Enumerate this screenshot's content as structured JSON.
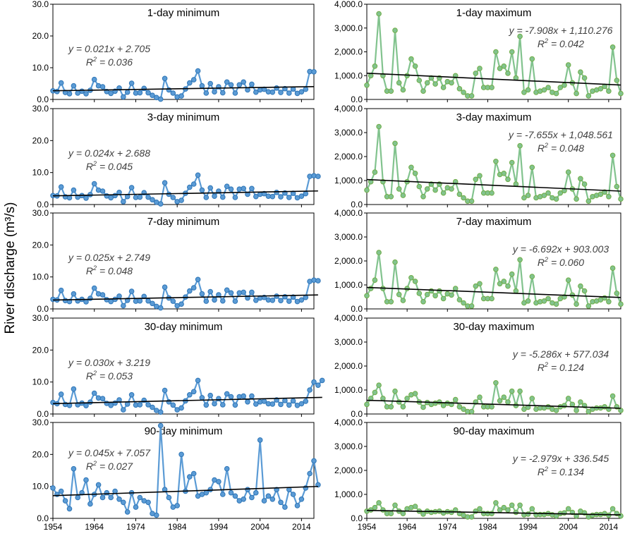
{
  "figure": {
    "ylabel": "River discharge (m³/s)",
    "xticks": [
      "1954",
      "1964",
      "1974",
      "1984",
      "1994",
      "2004",
      "2014"
    ]
  },
  "colors": {
    "min_line": "#5b9bd5",
    "min_fill": "#2e75b6",
    "max_line": "#82c38e",
    "max_fill": "#70ad47",
    "trend": "#000000"
  },
  "chart_data": [
    {
      "type": "line",
      "title": "1-day minimum",
      "series": "min",
      "ylim": [
        0,
        30
      ],
      "yticks": [
        "0.0",
        "10.0",
        "20.0",
        "30.0"
      ],
      "equation": "y = 0.021x + 2.705",
      "r2_prefix": "R",
      "r2_value": " = 0.036",
      "trend": {
        "slope": 0.021,
        "intercept": 2.705
      },
      "x_start": 1954,
      "values": [
        2.7,
        2.5,
        5.2,
        2.2,
        1.8,
        4.3,
        2.0,
        2.6,
        1.8,
        2.9,
        6.3,
        4.3,
        4.0,
        2.5,
        1.9,
        2.6,
        3.6,
        0.8,
        2.3,
        5.1,
        2.0,
        2.1,
        3.5,
        2.1,
        1.3,
        0.6,
        0.1,
        6.6,
        3.0,
        2.0,
        0.8,
        1.1,
        3.3,
        5.2,
        6.2,
        9.0,
        4.3,
        2.0,
        5.0,
        2.4,
        4.0,
        2.1,
        5.5,
        4.6,
        2.0,
        4.6,
        5.5,
        3.0,
        4.8,
        2.3,
        3.0,
        3.2,
        2.4,
        2.3,
        3.6,
        2.2,
        3.4,
        2.0,
        3.3,
        1.9,
        2.4,
        3.2,
        8.8,
        8.7
      ]
    },
    {
      "type": "line",
      "title": "1-day maximum",
      "series": "max",
      "ylim": [
        0,
        4000
      ],
      "yticks": [
        "0.0",
        "1,000.0",
        "2,000.0",
        "3,000.0",
        "4,000.0"
      ],
      "equation": "y = -7.908x + 1,110.276",
      "r2_prefix": "R",
      "r2_value": " = 0.042",
      "trend": {
        "slope": -7.908,
        "intercept": 1110.276
      },
      "x_start": 1954,
      "values": [
        600,
        1000,
        1400,
        3600,
        1000,
        350,
        350,
        2900,
        700,
        400,
        1000,
        1700,
        1400,
        800,
        350,
        700,
        900,
        650,
        900,
        500,
        750,
        700,
        1000,
        450,
        300,
        150,
        150,
        1100,
        1300,
        500,
        500,
        500,
        2000,
        1300,
        1400,
        1100,
        2000,
        900,
        2650,
        300,
        400,
        1700,
        300,
        350,
        400,
        500,
        300,
        250,
        500,
        600,
        1450,
        700,
        250,
        1150,
        900,
        150,
        350,
        400,
        450,
        550,
        350,
        2200,
        800,
        250
      ]
    },
    {
      "type": "line",
      "title": "3-day minimum",
      "series": "min",
      "ylim": [
        0,
        30
      ],
      "yticks": [
        "0.0",
        "10.0",
        "20.0",
        "30.0"
      ],
      "equation": "y = 0.024x + 2.688",
      "r2_prefix": "R",
      "r2_value": " = 0.045",
      "trend": {
        "slope": 0.024,
        "intercept": 2.688
      },
      "x_start": 1954,
      "values": [
        2.8,
        2.7,
        5.5,
        2.4,
        2.1,
        4.5,
        2.3,
        2.8,
        2.0,
        3.1,
        6.5,
        4.5,
        4.2,
        2.7,
        2.1,
        2.8,
        3.8,
        0.9,
        2.5,
        5.3,
        2.2,
        2.3,
        3.7,
        2.3,
        1.5,
        0.7,
        0.2,
        6.8,
        3.2,
        2.2,
        0.9,
        1.3,
        3.5,
        5.4,
        6.4,
        9.2,
        4.5,
        2.2,
        5.2,
        2.6,
        4.2,
        2.3,
        5.7,
        4.8,
        2.2,
        4.8,
        5.0,
        3.2,
        5.0,
        2.5,
        3.2,
        3.4,
        2.6,
        2.5,
        3.8,
        2.4,
        3.6,
        2.2,
        3.5,
        2.1,
        2.6,
        3.4,
        8.8,
        9.0,
        8.8
      ]
    },
    {
      "type": "line",
      "title": "3-day maximum",
      "series": "max",
      "ylim": [
        0,
        4000
      ],
      "yticks": [
        "0.0",
        "1,000.0",
        "2,000.0",
        "3,000.0",
        "4,000.0"
      ],
      "equation": "y = -7.655x + 1,048.561",
      "r2_prefix": "R",
      "r2_value": " = 0.048",
      "trend": {
        "slope": -7.655,
        "intercept": 1048.561
      },
      "x_start": 1954,
      "values": [
        600,
        950,
        1350,
        3250,
        950,
        330,
        330,
        2550,
        650,
        380,
        950,
        1550,
        1300,
        750,
        330,
        650,
        850,
        600,
        850,
        480,
        700,
        650,
        950,
        430,
        280,
        140,
        140,
        1050,
        1200,
        480,
        480,
        480,
        1800,
        1250,
        1300,
        1050,
        1750,
        850,
        2450,
        280,
        380,
        1550,
        280,
        330,
        380,
        480,
        280,
        230,
        480,
        580,
        1350,
        650,
        230,
        1080,
        850,
        140,
        330,
        380,
        430,
        520,
        330,
        2050,
        750,
        230
      ]
    },
    {
      "type": "line",
      "title": "7-day minimum",
      "series": "min",
      "ylim": [
        0,
        30
      ],
      "yticks": [
        "0.0",
        "10.0",
        "20.0",
        "30.0"
      ],
      "equation": "y = 0.025x + 2.749",
      "r2_prefix": "R",
      "r2_value": " = 0.048",
      "trend": {
        "slope": 0.025,
        "intercept": 2.749
      },
      "x_start": 1954,
      "values": [
        3.0,
        2.8,
        5.8,
        2.6,
        2.3,
        4.7,
        2.5,
        3.0,
        2.2,
        3.3,
        6.5,
        4.7,
        4.4,
        2.9,
        2.3,
        3.0,
        4.0,
        1.0,
        2.7,
        5.5,
        2.4,
        2.5,
        3.9,
        2.5,
        1.7,
        0.8,
        0.3,
        6.8,
        3.4,
        2.4,
        1.0,
        1.5,
        3.7,
        5.6,
        6.6,
        9.2,
        4.7,
        2.4,
        5.4,
        2.8,
        4.4,
        2.5,
        5.9,
        5.0,
        2.4,
        5.0,
        5.2,
        3.4,
        5.2,
        2.7,
        3.4,
        3.6,
        2.8,
        2.7,
        4.0,
        2.6,
        3.8,
        2.4,
        3.7,
        2.3,
        2.8,
        3.6,
        8.6,
        9.0,
        8.8
      ]
    },
    {
      "type": "line",
      "title": "7-day maximum",
      "series": "max",
      "ylim": [
        0,
        4000
      ],
      "yticks": [
        "0.0",
        "1,000.0",
        "2,000.0",
        "3,000.0",
        "4,000.0"
      ],
      "equation": "y = -6.692x + 903.003",
      "r2_prefix": "R",
      "r2_value": " = 0.060",
      "trend": {
        "slope": -6.692,
        "intercept": 903.003
      },
      "x_start": 1954,
      "values": [
        550,
        850,
        1200,
        2350,
        850,
        300,
        300,
        1950,
        600,
        350,
        850,
        1300,
        1150,
        650,
        300,
        600,
        750,
        550,
        750,
        430,
        630,
        580,
        850,
        380,
        250,
        120,
        120,
        950,
        1050,
        430,
        430,
        430,
        1650,
        1050,
        1150,
        950,
        1450,
        750,
        2050,
        250,
        330,
        1350,
        250,
        300,
        330,
        430,
        250,
        200,
        430,
        500,
        1200,
        580,
        200,
        950,
        750,
        120,
        300,
        330,
        380,
        460,
        300,
        1700,
        650,
        200
      ]
    },
    {
      "type": "line",
      "title": "30-day minimum",
      "series": "min",
      "ylim": [
        0,
        30
      ],
      "yticks": [
        "0.0",
        "10.0",
        "20.0",
        "30.0"
      ],
      "equation": "y = 0.030x + 3.219",
      "r2_prefix": "R",
      "r2_value": " = 0.053",
      "trend": {
        "slope": 0.03,
        "intercept": 3.219
      },
      "x_start": 1954,
      "values": [
        3.6,
        3.2,
        6.2,
        3.0,
        2.7,
        7.8,
        2.9,
        3.4,
        2.6,
        3.7,
        6.5,
        5.0,
        4.8,
        3.3,
        2.7,
        3.4,
        4.4,
        1.3,
        3.1,
        6.0,
        2.8,
        2.9,
        4.3,
        2.9,
        2.1,
        1.1,
        0.6,
        7.4,
        3.8,
        2.8,
        1.3,
        1.9,
        4.1,
        6.0,
        7.0,
        10.5,
        5.1,
        2.8,
        5.8,
        3.2,
        4.8,
        2.9,
        6.3,
        5.4,
        2.8,
        5.4,
        5.6,
        3.8,
        5.6,
        3.1,
        3.8,
        4.0,
        3.2,
        3.1,
        4.4,
        3.0,
        4.2,
        2.8,
        4.1,
        2.7,
        3.2,
        4.0,
        7.5,
        10.0,
        9.0,
        10.5
      ]
    },
    {
      "type": "line",
      "title": "30-day maximum",
      "series": "max",
      "ylim": [
        0,
        4000
      ],
      "yticks": [
        "0.0",
        "1,000.0",
        "2,000.0",
        "3,000.0",
        "4,000.0"
      ],
      "equation": "y = -5.286x + 577.034",
      "r2_prefix": "R",
      "r2_value": " = 0.124",
      "trend": {
        "slope": -5.286,
        "intercept": 577.034
      },
      "x_start": 1954,
      "values": [
        400,
        650,
        900,
        1200,
        650,
        300,
        300,
        950,
        500,
        300,
        650,
        800,
        850,
        500,
        280,
        480,
        400,
        450,
        500,
        350,
        450,
        400,
        600,
        300,
        200,
        100,
        100,
        500,
        700,
        300,
        300,
        300,
        1300,
        550,
        700,
        500,
        950,
        350,
        950,
        200,
        280,
        650,
        200,
        250,
        250,
        300,
        200,
        150,
        300,
        350,
        650,
        400,
        150,
        500,
        350,
        100,
        200,
        250,
        250,
        300,
        200,
        750,
        300,
        150
      ]
    },
    {
      "type": "line",
      "title": "90-day minimum",
      "series": "min",
      "ylim": [
        0,
        30
      ],
      "yticks": [
        "0.0",
        "10.0",
        "20.0",
        "30.0"
      ],
      "equation": "y = 0.045x + 7.057",
      "r2_prefix": "R",
      "r2_value": " = 0.027",
      "trend": {
        "slope": 0.045,
        "intercept": 7.057
      },
      "x_start": 1954,
      "values": [
        9.5,
        7.5,
        8.5,
        5.5,
        3.0,
        15.5,
        6.5,
        8.0,
        12.0,
        4.5,
        7.5,
        10.5,
        6.5,
        8.0,
        6.5,
        8.5,
        6.0,
        5.0,
        2.0,
        8.0,
        3.5,
        6.5,
        5.5,
        5.0,
        1.5,
        1.0,
        29.0,
        9.0,
        6.5,
        3.5,
        4.0,
        20.0,
        8.5,
        13.0,
        14.0,
        7.0,
        7.5,
        8.0,
        9.0,
        12.0,
        11.5,
        7.5,
        15.5,
        8.0,
        7.0,
        5.5,
        6.0,
        9.0,
        6.5,
        8.0,
        24.5,
        5.5,
        7.0,
        6.0,
        9.0,
        5.0,
        3.5,
        9.0,
        7.5,
        4.0,
        6.0,
        9.5,
        14.0,
        18.0,
        10.5
      ]
    },
    {
      "type": "line",
      "title": "90-day maximum",
      "series": "max",
      "ylim": [
        0,
        4000
      ],
      "yticks": [
        "0.0",
        "1,000.0",
        "2,000.0",
        "3,000.0",
        "4,000.0"
      ],
      "equation": "y = -2.979x + 336.545",
      "r2_prefix": "R",
      "r2_value": " = 0.134",
      "trend": {
        "slope": -2.979,
        "intercept": 336.545
      },
      "x_start": 1954,
      "values": [
        300,
        350,
        450,
        650,
        350,
        200,
        200,
        550,
        300,
        200,
        400,
        450,
        500,
        300,
        180,
        300,
        250,
        280,
        300,
        220,
        280,
        250,
        350,
        200,
        130,
        60,
        60,
        300,
        400,
        200,
        200,
        200,
        650,
        350,
        450,
        350,
        550,
        250,
        550,
        150,
        180,
        400,
        150,
        160,
        160,
        200,
        150,
        100,
        200,
        230,
        400,
        250,
        100,
        300,
        230,
        60,
        130,
        160,
        160,
        200,
        130,
        400,
        200,
        100
      ]
    }
  ]
}
